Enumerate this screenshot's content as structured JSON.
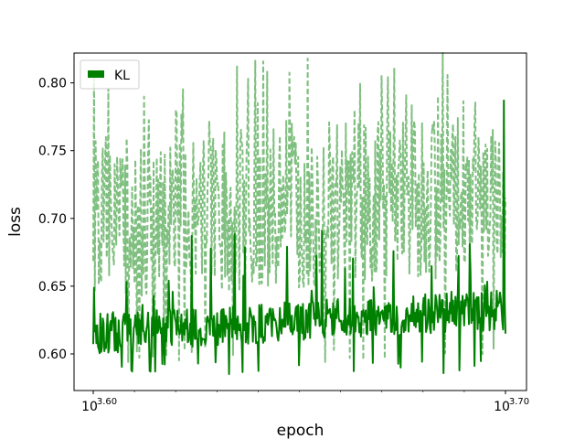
{
  "chart_data": {
    "type": "line",
    "title": "",
    "xlabel": "epoch",
    "ylabel": "loss",
    "xscale": "log",
    "xlim": [
      3981,
      5012
    ],
    "ylim": [
      0.573,
      0.822
    ],
    "x_ticks": [
      {
        "label_base": "10",
        "label_exp": "3.60"
      },
      {
        "label_base": "10",
        "label_exp": "3.70"
      }
    ],
    "y_ticks": [
      "0.60",
      "0.65",
      "0.70",
      "0.75",
      "0.80"
    ],
    "y_tick_values": [
      0.6,
      0.65,
      0.7,
      0.75,
      0.8
    ],
    "grid": false,
    "legend": {
      "position": "top-left",
      "entries": [
        "KL"
      ]
    },
    "colors": {
      "series": "#008000",
      "series_faded": "#7fbf7f"
    },
    "series": [
      {
        "name": "KL",
        "style": "solid",
        "x_range": [
          3981,
          5012
        ],
        "y_min": 0.585,
        "y_max": 0.787,
        "y_typical": [
          0.6,
          0.665
        ]
      },
      {
        "style": "dashed",
        "x_range": [
          3981,
          5012
        ],
        "y_min": 0.594,
        "y_max": 0.811,
        "y_typical": [
          0.64,
          0.76
        ]
      }
    ]
  }
}
